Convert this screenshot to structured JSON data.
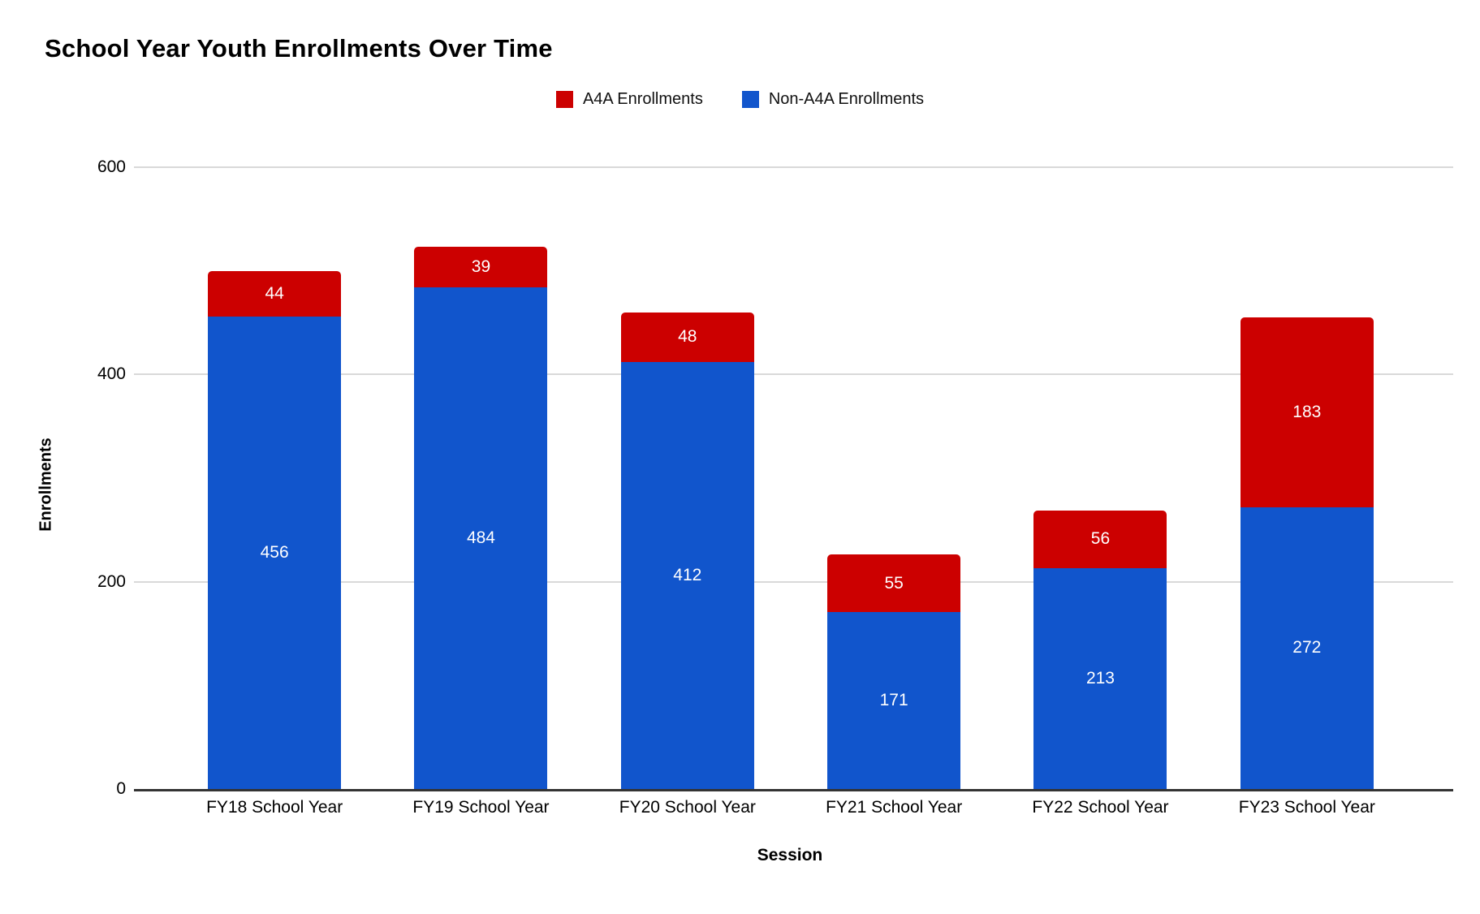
{
  "chart_data": {
    "type": "bar",
    "stacked": true,
    "title": "School Year Youth Enrollments Over Time",
    "categories": [
      "FY18 School Year",
      "FY19 School Year",
      "FY20 School Year",
      "FY21 School Year",
      "FY22 School Year",
      "FY23 School Year"
    ],
    "series": [
      {
        "name": "Non-A4A Enrollments",
        "color": "#1155cc",
        "values": [
          456,
          484,
          412,
          171,
          213,
          272
        ]
      },
      {
        "name": "A4A Enrollments",
        "color": "#cc0000",
        "values": [
          44,
          39,
          48,
          55,
          56,
          183
        ]
      }
    ],
    "legend": [
      {
        "label": "A4A Enrollments",
        "color": "#cc0000"
      },
      {
        "label": "Non-A4A Enrollments",
        "color": "#1155cc"
      }
    ],
    "xlabel": "Session",
    "ylabel": "Enrollments",
    "ylim": [
      0,
      600
    ],
    "yticks": [
      600,
      400,
      200,
      0
    ],
    "grid": true,
    "legend_position": "top",
    "colors": {
      "gridline": "#d9d9d9",
      "axis_line": "#333333",
      "text": "#000000",
      "bar_label": "#ffffff"
    }
  }
}
